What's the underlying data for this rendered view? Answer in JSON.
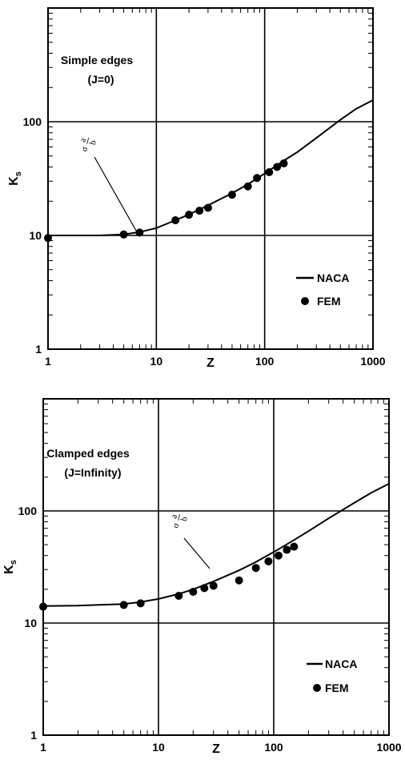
{
  "chart_data": [
    {
      "type": "line",
      "xscale": "log",
      "yscale": "log",
      "xlim": [
        1,
        1000
      ],
      "ylim": [
        1,
        1000
      ],
      "xticks": [
        "1",
        "10",
        "100",
        "1000"
      ],
      "yticks": [
        "1",
        "10",
        "100"
      ],
      "xlabel": "Z",
      "ylabel": "K",
      "ylabel_sub": "s",
      "annotation": [
        "Simple edges",
        "(J=0)"
      ],
      "ratio_label": {
        "sym": "σ",
        "num": "a",
        "den": "b"
      },
      "grid": true,
      "legend_position": "right-middle",
      "series": [
        {
          "name": "NACA",
          "style": "line",
          "x": [
            1,
            3,
            5,
            7,
            10,
            15,
            20,
            30,
            50,
            70,
            100,
            150,
            200,
            300,
            500,
            700,
            1000
          ],
          "y": [
            10,
            10,
            10.2,
            10.7,
            11.6,
            13.6,
            15.3,
            18.4,
            23.5,
            28.2,
            35,
            45.5,
            54,
            72,
            104,
            130,
            155
          ]
        },
        {
          "name": "FEM",
          "style": "points",
          "x": [
            1,
            5,
            7,
            15,
            20,
            25,
            30,
            50,
            70,
            85,
            110,
            130,
            150
          ],
          "y": [
            9.5,
            10.2,
            10.6,
            13.6,
            15.2,
            16.5,
            17.5,
            22.8,
            27,
            32,
            36,
            40,
            43
          ]
        }
      ]
    },
    {
      "type": "line",
      "xscale": "log",
      "yscale": "log",
      "xlim": [
        1,
        1000
      ],
      "ylim": [
        1,
        1000
      ],
      "xticks": [
        "1",
        "10",
        "100",
        "1000"
      ],
      "yticks": [
        "1",
        "10",
        "100"
      ],
      "xlabel": "Z",
      "ylabel": "K",
      "ylabel_sub": "s",
      "annotation": [
        "Clamped edges",
        "(J=Infinity)"
      ],
      "ratio_label": {
        "sym": "σ",
        "num": "a",
        "den": "b"
      },
      "grid": true,
      "legend_position": "right-middle",
      "series": [
        {
          "name": "NACA",
          "style": "line",
          "x": [
            1,
            2,
            5,
            7,
            10,
            15,
            20,
            30,
            50,
            70,
            100,
            150,
            200,
            300,
            500,
            700,
            1000
          ],
          "y": [
            14.2,
            14.3,
            14.8,
            15.4,
            16.4,
            18.2,
            20,
            23.5,
            29.5,
            35,
            43,
            55,
            66,
            86,
            118,
            145,
            175
          ]
        },
        {
          "name": "FEM",
          "style": "points",
          "x": [
            1,
            5,
            7,
            15,
            20,
            25,
            30,
            50,
            70,
            90,
            110,
            130,
            150
          ],
          "y": [
            14,
            14.5,
            15,
            17.5,
            19,
            20.5,
            21.5,
            24,
            31,
            35.5,
            40,
            45,
            48
          ]
        }
      ]
    }
  ]
}
